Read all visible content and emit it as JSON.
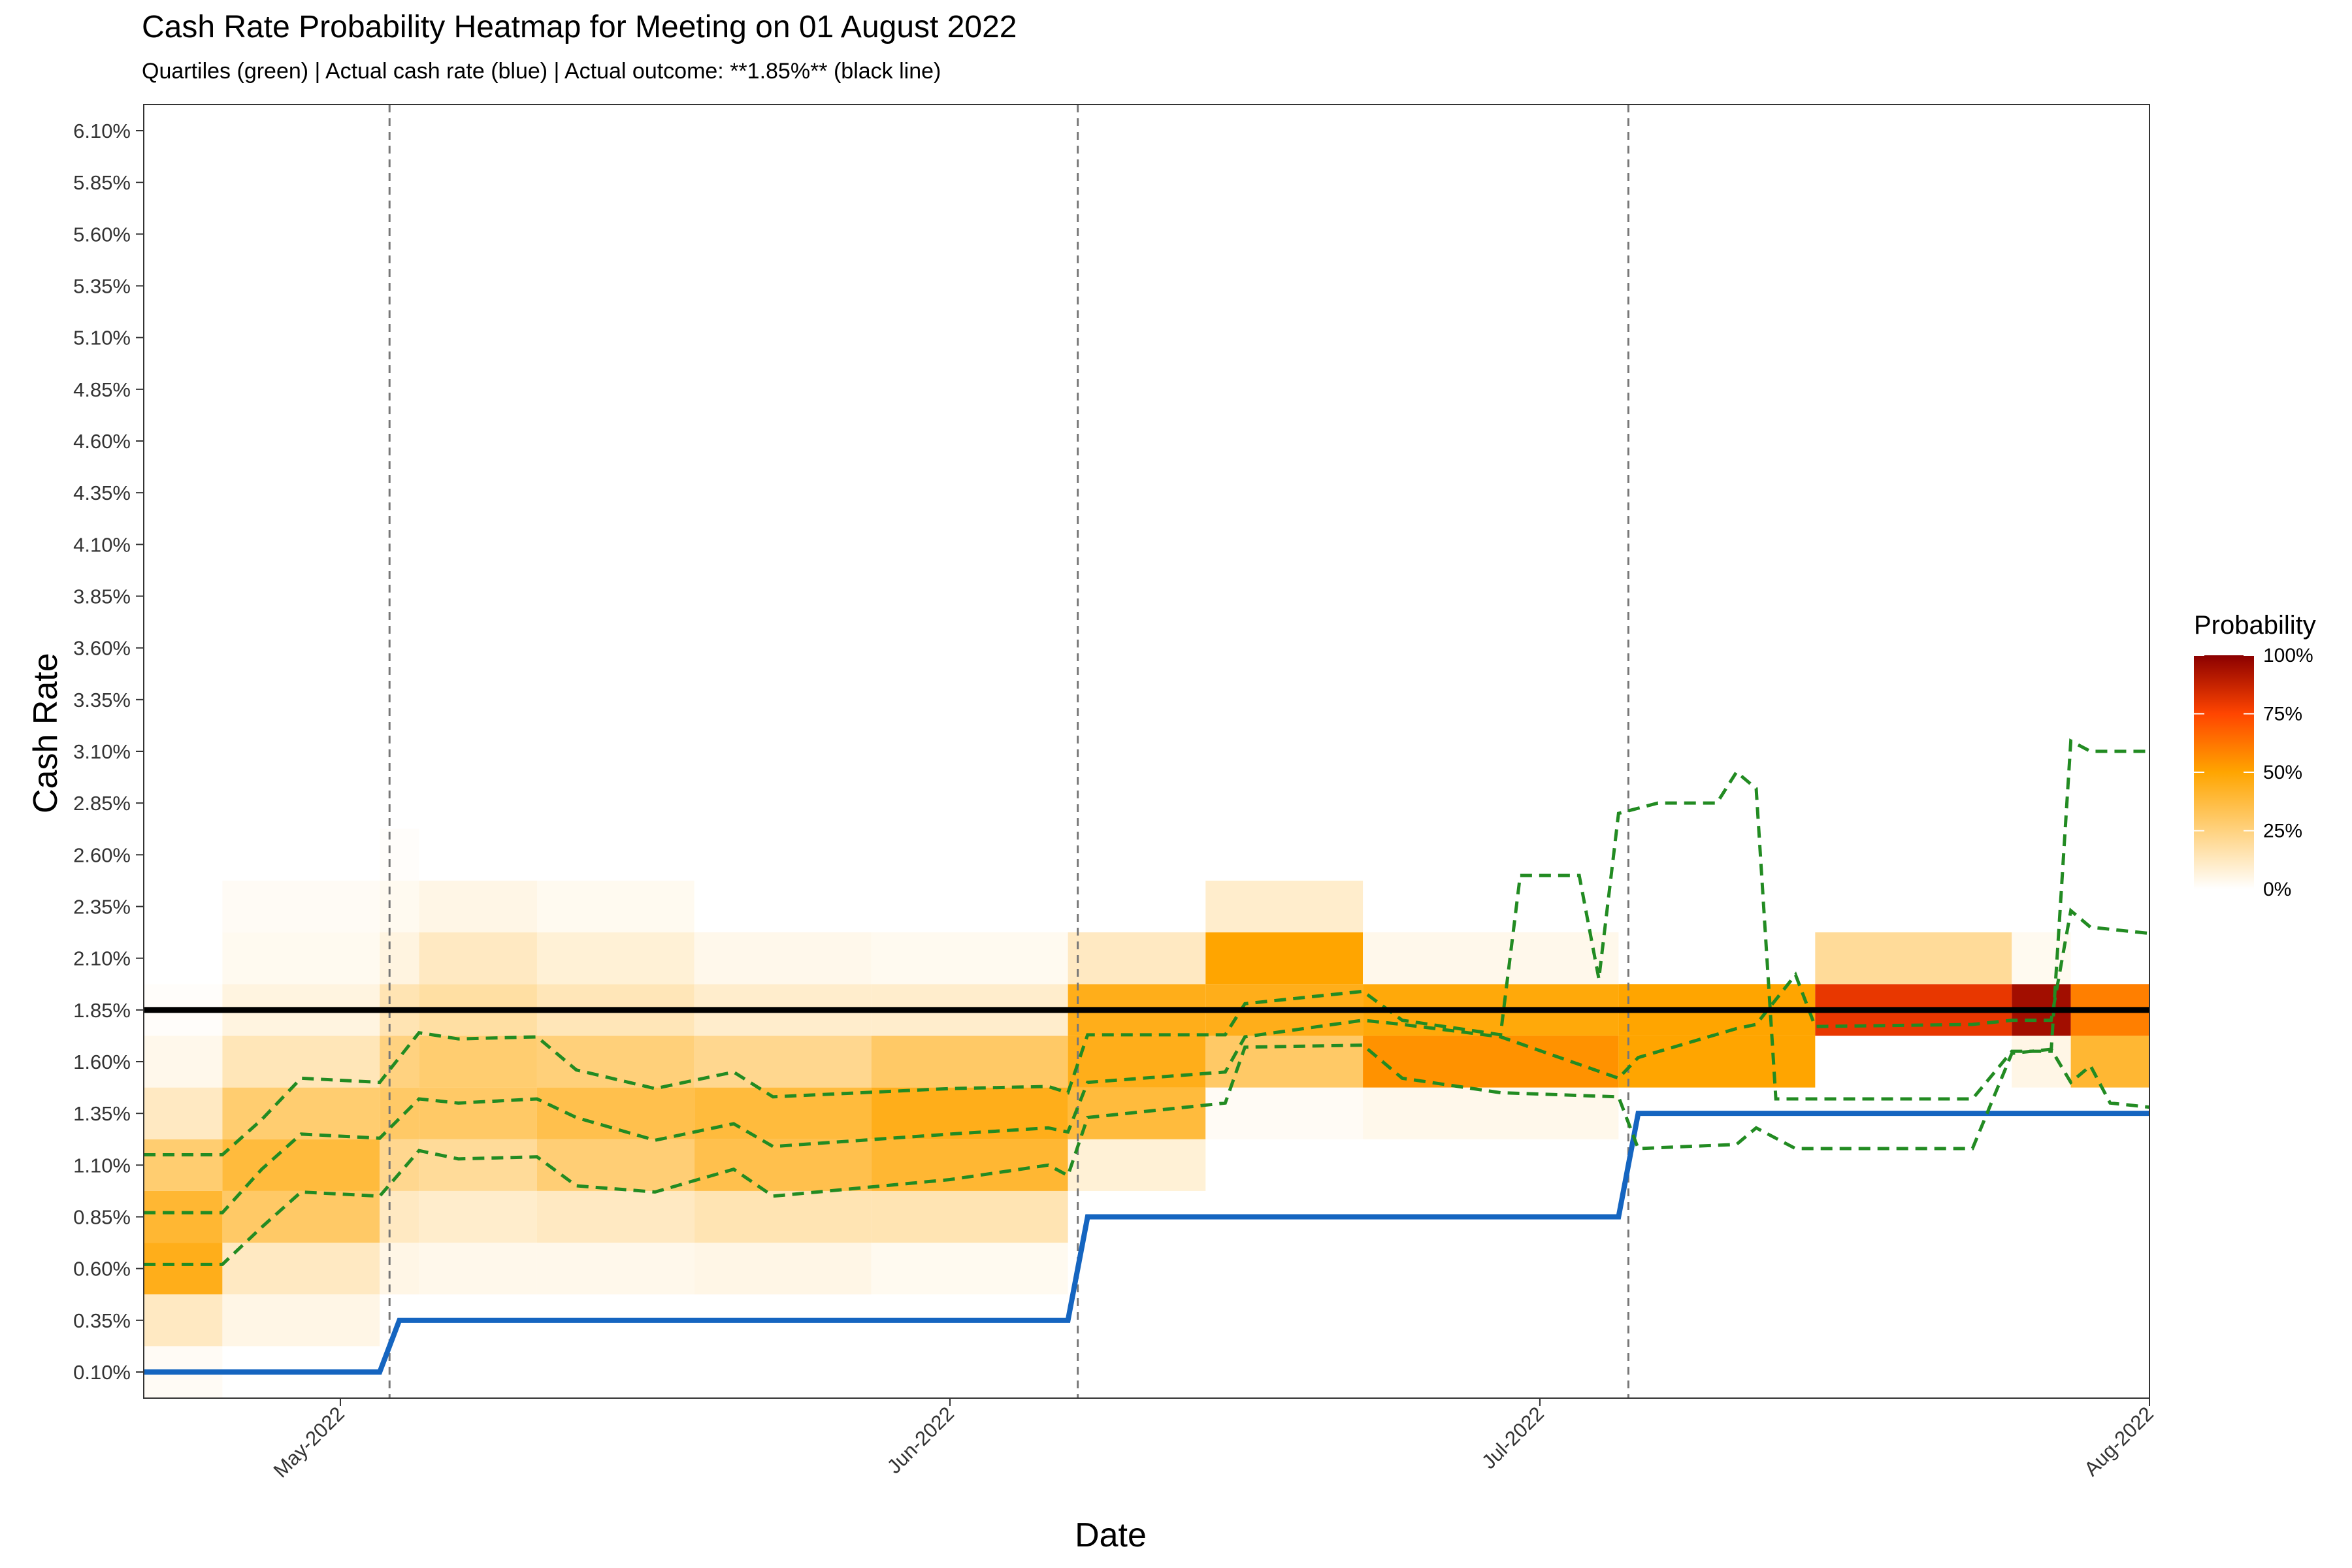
{
  "chart_data": {
    "type": "heatmap",
    "title": "Cash Rate Probability Heatmap for Meeting on 01 August 2022",
    "subtitle": "Quartiles (green) | Actual cash rate (blue) | Actual outcome: **1.85%** (black line)",
    "xlabel": "Date",
    "ylabel": "Cash Rate",
    "x_range": [
      "2022-04-21",
      "2022-08-01"
    ],
    "y_range": [
      0.1,
      6.1
    ],
    "x_ticks": [
      {
        "date": "2022-05-01",
        "label": "May-2022"
      },
      {
        "date": "2022-06-01",
        "label": "Jun-2022"
      },
      {
        "date": "2022-07-01",
        "label": "Jul-2022"
      },
      {
        "date": "2022-08-01",
        "label": "Aug-2022"
      }
    ],
    "y_ticks": [
      "0.10%",
      "0.35%",
      "0.60%",
      "0.85%",
      "1.10%",
      "1.35%",
      "1.60%",
      "1.85%",
      "2.10%",
      "2.35%",
      "2.60%",
      "2.85%",
      "3.10%",
      "3.35%",
      "3.60%",
      "3.85%",
      "4.10%",
      "4.35%",
      "4.60%",
      "4.85%",
      "5.10%",
      "5.35%",
      "5.60%",
      "5.85%",
      "6.10%"
    ],
    "grid": false,
    "rate_bins": [
      0.1,
      0.35,
      0.6,
      0.85,
      1.1,
      1.35,
      1.6,
      1.85,
      2.1,
      2.35,
      2.6
    ],
    "heatmap_periods": [
      {
        "start": "2022-04-21",
        "end": "2022-04-25",
        "probs": [
          0.02,
          0.12,
          0.45,
          0.4,
          0.28,
          0.12,
          0.04,
          0.01,
          0,
          0,
          0
        ]
      },
      {
        "start": "2022-04-25",
        "end": "2022-05-03",
        "probs": [
          0,
          0.05,
          0.12,
          0.3,
          0.38,
          0.28,
          0.14,
          0.06,
          0.03,
          0.02,
          0
        ]
      },
      {
        "start": "2022-05-03",
        "end": "2022-05-05",
        "probs": [
          0,
          0,
          0.05,
          0.12,
          0.22,
          0.3,
          0.25,
          0.15,
          0.06,
          0.03,
          0.01
        ]
      },
      {
        "start": "2022-05-05",
        "end": "2022-05-11",
        "probs": [
          0,
          0,
          0.04,
          0.1,
          0.2,
          0.3,
          0.28,
          0.18,
          0.12,
          0.05,
          0
        ]
      },
      {
        "start": "2022-05-11",
        "end": "2022-05-19",
        "probs": [
          0,
          0,
          0.04,
          0.12,
          0.27,
          0.35,
          0.26,
          0.14,
          0.08,
          0.03,
          0
        ]
      },
      {
        "start": "2022-05-19",
        "end": "2022-05-28",
        "probs": [
          0,
          0,
          0.05,
          0.15,
          0.35,
          0.38,
          0.22,
          0.1,
          0.04,
          0,
          0
        ]
      },
      {
        "start": "2022-05-28",
        "end": "2022-06-07",
        "probs": [
          0,
          0,
          0.03,
          0.15,
          0.4,
          0.45,
          0.3,
          0.1,
          0.03,
          0,
          0
        ]
      },
      {
        "start": "2022-06-07",
        "end": "2022-06-14",
        "probs": [
          0,
          0,
          0,
          0,
          0.08,
          0.38,
          0.45,
          0.45,
          0.12,
          0,
          0
        ]
      },
      {
        "start": "2022-06-14",
        "end": "2022-06-22",
        "probs": [
          0,
          0,
          0,
          0,
          0,
          0.02,
          0.3,
          0.45,
          0.5,
          0.1,
          0
        ]
      },
      {
        "start": "2022-06-22",
        "end": "2022-07-05",
        "probs": [
          0,
          0,
          0,
          0,
          0,
          0.04,
          0.55,
          0.48,
          0.04,
          0,
          0
        ]
      },
      {
        "start": "2022-07-05",
        "end": "2022-07-15",
        "probs": [
          0,
          0,
          0,
          0,
          0,
          0,
          0.5,
          0.5,
          0,
          0,
          0
        ]
      },
      {
        "start": "2022-07-15",
        "end": "2022-07-25",
        "probs": [
          0,
          0,
          0,
          0,
          0,
          0,
          0,
          0.8,
          0.2,
          0,
          0
        ]
      },
      {
        "start": "2022-07-25",
        "end": "2022-07-28",
        "probs": [
          0,
          0,
          0,
          0,
          0,
          0,
          0.05,
          0.95,
          0.03,
          0,
          0
        ]
      },
      {
        "start": "2022-07-28",
        "end": "2022-08-01",
        "probs": [
          0,
          0,
          0,
          0,
          0,
          0,
          0.4,
          0.6,
          0,
          0,
          0
        ]
      }
    ],
    "series": [
      {
        "name": "Actual cash rate (blue)",
        "color": "#1565c0",
        "points": [
          [
            "2022-04-21",
            0.1
          ],
          [
            "2022-05-03",
            0.1
          ],
          [
            "2022-05-04",
            0.35
          ],
          [
            "2022-06-07",
            0.35
          ],
          [
            "2022-06-08",
            0.85
          ],
          [
            "2022-07-05",
            0.85
          ],
          [
            "2022-07-06",
            1.35
          ],
          [
            "2022-08-01",
            1.35
          ]
        ]
      },
      {
        "name": "Quartiles (green)",
        "color": "#228b22",
        "style": "dashed",
        "points": [
          [
            "2022-04-21",
            0.62
          ],
          [
            "2022-04-25",
            0.62
          ],
          [
            "2022-04-27",
            0.8
          ],
          [
            "2022-04-29",
            0.97
          ],
          [
            "2022-05-03",
            0.95
          ],
          [
            "2022-05-05",
            1.17
          ],
          [
            "2022-05-07",
            1.13
          ],
          [
            "2022-05-11",
            1.14
          ],
          [
            "2022-05-13",
            1.0
          ],
          [
            "2022-05-17",
            0.97
          ],
          [
            "2022-05-21",
            1.08
          ],
          [
            "2022-05-23",
            0.95
          ],
          [
            "2022-06-01",
            1.03
          ],
          [
            "2022-06-06",
            1.1
          ],
          [
            "2022-06-07",
            1.05
          ],
          [
            "2022-06-08",
            1.33
          ],
          [
            "2022-06-15",
            1.4
          ],
          [
            "2022-06-16",
            1.67
          ],
          [
            "2022-06-22",
            1.68
          ],
          [
            "2022-06-24",
            1.52
          ],
          [
            "2022-06-29",
            1.45
          ],
          [
            "2022-07-05",
            1.43
          ],
          [
            "2022-07-06",
            1.18
          ],
          [
            "2022-07-11",
            1.2
          ],
          [
            "2022-07-12",
            1.28
          ],
          [
            "2022-07-14",
            1.18
          ],
          [
            "2022-07-23",
            1.18
          ],
          [
            "2022-07-25",
            1.64
          ],
          [
            "2022-07-27",
            1.66
          ],
          [
            "2022-07-28",
            1.5
          ],
          [
            "2022-07-29",
            1.58
          ],
          [
            "2022-07-30",
            1.4
          ],
          [
            "2022-08-01",
            1.38
          ]
        ]
      },
      {
        "name": "Quartiles (green)",
        "color": "#228b22",
        "style": "dashed",
        "points": [
          [
            "2022-04-21",
            0.87
          ],
          [
            "2022-04-25",
            0.87
          ],
          [
            "2022-04-27",
            1.08
          ],
          [
            "2022-04-29",
            1.25
          ],
          [
            "2022-05-03",
            1.23
          ],
          [
            "2022-05-05",
            1.42
          ],
          [
            "2022-05-07",
            1.4
          ],
          [
            "2022-05-11",
            1.42
          ],
          [
            "2022-05-13",
            1.33
          ],
          [
            "2022-05-17",
            1.22
          ],
          [
            "2022-05-21",
            1.3
          ],
          [
            "2022-05-23",
            1.19
          ],
          [
            "2022-06-01",
            1.25
          ],
          [
            "2022-06-06",
            1.28
          ],
          [
            "2022-06-07",
            1.26
          ],
          [
            "2022-06-08",
            1.5
          ],
          [
            "2022-06-15",
            1.55
          ],
          [
            "2022-06-16",
            1.72
          ],
          [
            "2022-06-22",
            1.8
          ],
          [
            "2022-06-24",
            1.78
          ],
          [
            "2022-06-29",
            1.72
          ],
          [
            "2022-07-05",
            1.52
          ],
          [
            "2022-07-06",
            1.62
          ],
          [
            "2022-07-11",
            1.76
          ],
          [
            "2022-07-12",
            1.78
          ],
          [
            "2022-07-14",
            2.02
          ],
          [
            "2022-07-15",
            1.77
          ],
          [
            "2022-07-23",
            1.78
          ],
          [
            "2022-07-25",
            1.8
          ],
          [
            "2022-07-27",
            1.8
          ],
          [
            "2022-07-28",
            2.33
          ],
          [
            "2022-07-29",
            2.25
          ],
          [
            "2022-08-01",
            2.22
          ]
        ]
      },
      {
        "name": "Quartiles (green)",
        "color": "#228b22",
        "style": "dashed",
        "points": [
          [
            "2022-04-21",
            1.15
          ],
          [
            "2022-04-25",
            1.15
          ],
          [
            "2022-04-27",
            1.32
          ],
          [
            "2022-04-29",
            1.52
          ],
          [
            "2022-05-03",
            1.5
          ],
          [
            "2022-05-05",
            1.74
          ],
          [
            "2022-05-07",
            1.71
          ],
          [
            "2022-05-11",
            1.72
          ],
          [
            "2022-05-13",
            1.56
          ],
          [
            "2022-05-17",
            1.47
          ],
          [
            "2022-05-21",
            1.55
          ],
          [
            "2022-05-23",
            1.43
          ],
          [
            "2022-06-01",
            1.47
          ],
          [
            "2022-06-06",
            1.48
          ],
          [
            "2022-06-07",
            1.45
          ],
          [
            "2022-06-08",
            1.73
          ],
          [
            "2022-06-15",
            1.73
          ],
          [
            "2022-06-16",
            1.88
          ],
          [
            "2022-06-22",
            1.94
          ],
          [
            "2022-06-24",
            1.8
          ],
          [
            "2022-06-29",
            1.73
          ],
          [
            "2022-06-30",
            2.5
          ],
          [
            "2022-07-03",
            2.5
          ],
          [
            "2022-07-04",
            2.0
          ],
          [
            "2022-07-05",
            2.8
          ],
          [
            "2022-07-07",
            2.85
          ],
          [
            "2022-07-10",
            2.85
          ],
          [
            "2022-07-11",
            3.0
          ],
          [
            "2022-07-12",
            2.92
          ],
          [
            "2022-07-13",
            1.42
          ],
          [
            "2022-07-23",
            1.42
          ],
          [
            "2022-07-25",
            1.65
          ],
          [
            "2022-07-27",
            1.65
          ],
          [
            "2022-07-28",
            3.15
          ],
          [
            "2022-07-29",
            3.1
          ],
          [
            "2022-08-01",
            3.1
          ]
        ]
      },
      {
        "name": "Actual outcome: **1.85%** (black line)",
        "color": "#000000",
        "value": 1.85
      }
    ],
    "meeting_dates": [
      "2022-05-03",
      "2022-06-07",
      "2022-07-05"
    ],
    "legend": {
      "title": "Probability",
      "position": "right",
      "ticks": [
        "100%",
        "75%",
        "50%",
        "25%",
        "0%"
      ],
      "colors": [
        "#ffffff",
        "#ffa500",
        "#ff4500",
        "#8b0000"
      ]
    }
  }
}
